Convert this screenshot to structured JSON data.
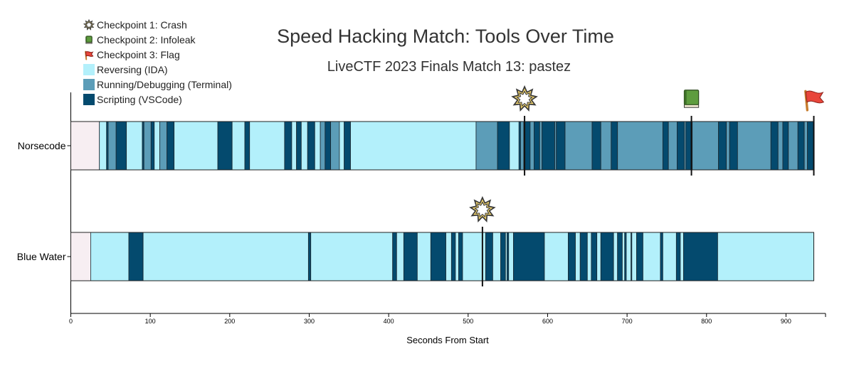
{
  "chart_data": {
    "type": "timeline",
    "title": "Speed Hacking Match: Tools Over Time",
    "subtitle": "LiveCTF 2023 Finals Match 13: pastez",
    "xlabel": "Seconds From Start",
    "xlim": [
      0,
      950
    ],
    "xticks": [
      "0",
      "100",
      "200",
      "300",
      "400",
      "500",
      "600",
      "700",
      "800",
      "900"
    ],
    "legend_position": "top-left",
    "legend": [
      {
        "key": "crash",
        "label": "Checkpoint 1: Crash",
        "kind": "icon",
        "icon": "crash-icon"
      },
      {
        "key": "infoleak",
        "label": "Checkpoint 2: Infoleak",
        "kind": "icon",
        "icon": "book-icon"
      },
      {
        "key": "flag",
        "label": "Checkpoint 3: Flag",
        "kind": "icon",
        "icon": "flag-icon"
      },
      {
        "key": "R",
        "label": "Reversing (IDA)",
        "kind": "swatch"
      },
      {
        "key": "T",
        "label": "Running/Debugging (Terminal)",
        "kind": "swatch"
      },
      {
        "key": "S",
        "label": "Scripting (VSCode)",
        "kind": "swatch"
      }
    ],
    "colors": {
      "R": "#b3f0fb",
      "T": "#5c9db8",
      "S": "#044a6e",
      "idle": "#f7eef2",
      "crash": "#f5d76e",
      "infoleak": "#5e9c3e",
      "flag": "#e8463b"
    },
    "series": [
      {
        "name": "Norsecode",
        "end": 935,
        "segments": [
          [
            "idle",
            0,
            36
          ],
          [
            "R",
            36,
            45
          ],
          [
            "S",
            45,
            47
          ],
          [
            "T",
            47,
            57
          ],
          [
            "S",
            57,
            70
          ],
          [
            "R",
            70,
            90
          ],
          [
            "S",
            90,
            92
          ],
          [
            "T",
            92,
            101
          ],
          [
            "S",
            101,
            105
          ],
          [
            "R",
            105,
            112
          ],
          [
            "T",
            112,
            121
          ],
          [
            "S",
            121,
            130
          ],
          [
            "R",
            130,
            185
          ],
          [
            "S",
            185,
            203
          ],
          [
            "R",
            203,
            219
          ],
          [
            "S",
            219,
            225
          ],
          [
            "R",
            225,
            269
          ],
          [
            "S",
            269,
            278
          ],
          [
            "R",
            278,
            284
          ],
          [
            "S",
            284,
            290
          ],
          [
            "R",
            290,
            298
          ],
          [
            "S",
            298,
            307
          ],
          [
            "R",
            307,
            314
          ],
          [
            "T",
            314,
            320
          ],
          [
            "S",
            320,
            327
          ],
          [
            "T",
            327,
            338
          ],
          [
            "R",
            338,
            344
          ],
          [
            "S",
            344,
            352
          ],
          [
            "R",
            352,
            510
          ],
          [
            "T",
            510,
            537
          ],
          [
            "S",
            537,
            552
          ],
          [
            "R",
            552,
            564
          ],
          [
            "S",
            564,
            566
          ],
          [
            "T",
            566,
            570
          ],
          [
            "S",
            570,
            578
          ],
          [
            "T",
            578,
            583
          ],
          [
            "S",
            583,
            590
          ],
          [
            "T",
            590,
            593
          ],
          [
            "S",
            593,
            609
          ],
          [
            "T",
            609,
            611
          ],
          [
            "S",
            611,
            622
          ],
          [
            "T",
            622,
            656
          ],
          [
            "S",
            656,
            667
          ],
          [
            "T",
            667,
            680
          ],
          [
            "S",
            680,
            688
          ],
          [
            "T",
            688,
            745
          ],
          [
            "S",
            745,
            752
          ],
          [
            "T",
            752,
            763
          ],
          [
            "S",
            763,
            772
          ],
          [
            "T",
            772,
            774
          ],
          [
            "S",
            774,
            782
          ],
          [
            "T",
            782,
            815
          ],
          [
            "S",
            815,
            825
          ],
          [
            "T",
            825,
            829
          ],
          [
            "S",
            829,
            839
          ],
          [
            "T",
            839,
            881
          ],
          [
            "S",
            881,
            890
          ],
          [
            "T",
            890,
            896
          ],
          [
            "S",
            896,
            903
          ],
          [
            "T",
            903,
            915
          ],
          [
            "S",
            915,
            923
          ],
          [
            "T",
            923,
            927
          ],
          [
            "S",
            927,
            935
          ]
        ],
        "checkpoints": [
          {
            "type": "crash",
            "x": 571
          },
          {
            "type": "infoleak",
            "x": 781
          },
          {
            "type": "flag",
            "x": 935
          }
        ]
      },
      {
        "name": "Blue Water",
        "end": 935,
        "segments": [
          [
            "idle",
            0,
            25
          ],
          [
            "R",
            25,
            73
          ],
          [
            "S",
            73,
            91
          ],
          [
            "R",
            91,
            299
          ],
          [
            "S",
            299,
            302
          ],
          [
            "R",
            302,
            405
          ],
          [
            "S",
            405,
            410
          ],
          [
            "R",
            410,
            419
          ],
          [
            "S",
            419,
            436
          ],
          [
            "R",
            436,
            453
          ],
          [
            "S",
            453,
            472
          ],
          [
            "R",
            472,
            479
          ],
          [
            "S",
            479,
            484
          ],
          [
            "R",
            484,
            488
          ],
          [
            "S",
            488,
            493
          ],
          [
            "R",
            493,
            522
          ],
          [
            "S",
            522,
            531
          ],
          [
            "R",
            531,
            541
          ],
          [
            "S",
            541,
            547
          ],
          [
            "R",
            547,
            549
          ],
          [
            "S",
            549,
            551
          ],
          [
            "R",
            551,
            557
          ],
          [
            "S",
            557,
            596
          ],
          [
            "R",
            596,
            626
          ],
          [
            "S",
            626,
            635
          ],
          [
            "R",
            635,
            641
          ],
          [
            "S",
            641,
            650
          ],
          [
            "R",
            650,
            655
          ],
          [
            "S",
            655,
            662
          ],
          [
            "R",
            662,
            667
          ],
          [
            "S",
            667,
            683
          ],
          [
            "R",
            683,
            688
          ],
          [
            "S",
            688,
            694
          ],
          [
            "R",
            694,
            697
          ],
          [
            "S",
            697,
            699
          ],
          [
            "R",
            699,
            705
          ],
          [
            "S",
            705,
            706
          ],
          [
            "R",
            706,
            712
          ],
          [
            "S",
            712,
            720
          ],
          [
            "R",
            720,
            742
          ],
          [
            "S",
            742,
            745
          ],
          [
            "R",
            745,
            762
          ],
          [
            "S",
            762,
            767
          ],
          [
            "R",
            767,
            771
          ],
          [
            "S",
            771,
            814
          ],
          [
            "R",
            814,
            935
          ]
        ],
        "checkpoints": [
          {
            "type": "crash",
            "x": 518
          }
        ]
      }
    ]
  }
}
